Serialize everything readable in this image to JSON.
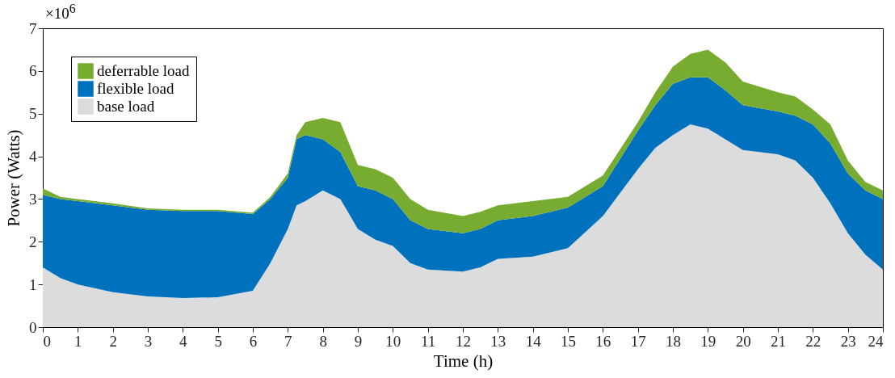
{
  "chart_data": {
    "type": "area",
    "stacked": true,
    "xlabel": "Time (h)",
    "ylabel": "Power (Watts)",
    "annotations": [
      "×10$^{6}$"
    ],
    "x": [
      0,
      0.5,
      1,
      2,
      3,
      4,
      5,
      6,
      6.5,
      7,
      7.25,
      7.5,
      8,
      8.5,
      9,
      9.5,
      10,
      10.5,
      11,
      12,
      12.5,
      13,
      14,
      15,
      16,
      17,
      17.5,
      18,
      18.5,
      19,
      19.5,
      20,
      21,
      21.5,
      22,
      22.5,
      23,
      23.5,
      24
    ],
    "series": [
      {
        "name": "base load",
        "color": "#dcdcdc",
        "values": [
          1.4,
          1.15,
          1.0,
          0.82,
          0.72,
          0.68,
          0.7,
          0.85,
          1.5,
          2.3,
          2.85,
          2.95,
          3.2,
          3.0,
          2.3,
          2.05,
          1.9,
          1.5,
          1.35,
          1.3,
          1.4,
          1.6,
          1.65,
          1.85,
          2.6,
          3.7,
          4.2,
          4.5,
          4.75,
          4.65,
          4.4,
          4.15,
          4.05,
          3.9,
          3.5,
          2.9,
          2.2,
          1.7,
          1.35
        ]
      },
      {
        "name": "flexible load",
        "color": "#0072bd",
        "values": [
          1.7,
          1.85,
          1.95,
          2.03,
          2.03,
          2.04,
          2.02,
          1.8,
          1.5,
          1.2,
          1.55,
          1.55,
          1.2,
          1.1,
          1.0,
          1.15,
          1.1,
          1.0,
          0.95,
          0.9,
          0.9,
          0.9,
          0.95,
          0.95,
          0.7,
          0.9,
          1.0,
          1.2,
          1.1,
          1.2,
          1.15,
          1.05,
          1.0,
          1.05,
          1.25,
          1.4,
          1.4,
          1.5,
          1.65
        ]
      },
      {
        "name": "deferrable load",
        "color": "#77ac30",
        "values": [
          0.15,
          0.05,
          0.05,
          0.05,
          0.03,
          0.03,
          0.03,
          0.03,
          0.05,
          0.1,
          0.1,
          0.3,
          0.5,
          0.7,
          0.5,
          0.5,
          0.5,
          0.5,
          0.45,
          0.4,
          0.4,
          0.35,
          0.35,
          0.25,
          0.25,
          0.2,
          0.3,
          0.4,
          0.55,
          0.65,
          0.65,
          0.55,
          0.45,
          0.45,
          0.35,
          0.45,
          0.3,
          0.2,
          0.2
        ]
      }
    ],
    "xlim": [
      0,
      24
    ],
    "xticks": [
      0,
      1,
      2,
      3,
      4,
      5,
      6,
      7,
      8,
      9,
      10,
      11,
      12,
      13,
      14,
      15,
      16,
      17,
      18,
      19,
      20,
      21,
      22,
      23,
      24
    ],
    "ylim": [
      0,
      7
    ],
    "yticks": [
      0,
      1,
      2,
      3,
      4,
      5,
      6,
      7
    ],
    "grid": false,
    "legend": "top left"
  }
}
